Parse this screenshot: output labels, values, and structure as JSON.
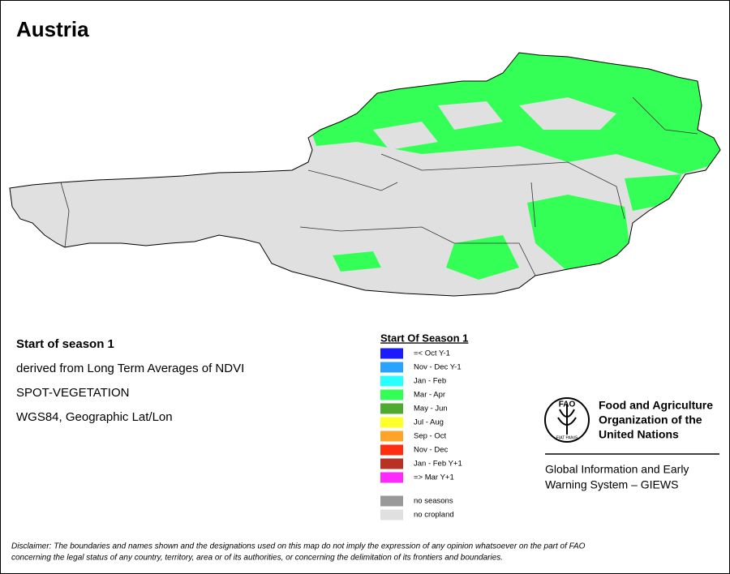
{
  "title": "Austria",
  "description": [
    "Start of season 1",
    "derived from Long Term Averages of NDVI",
    "SPOT-VEGETATION",
    "WGS84, Geographic Lat/Lon"
  ],
  "legend": {
    "title": "Start Of Season 1",
    "items": [
      {
        "label": "=< Oct Y-1",
        "color": "#1a1aff"
      },
      {
        "label": "Nov - Dec Y-1",
        "color": "#29a3ff"
      },
      {
        "label": "Jan - Feb",
        "color": "#29ffff"
      },
      {
        "label": "Mar - Apr",
        "color": "#33ff57"
      },
      {
        "label": "May - Jun",
        "color": "#4daa2e"
      },
      {
        "label": "Jul - Aug",
        "color": "#ffff29"
      },
      {
        "label": "Sep - Oct",
        "color": "#ffa329"
      },
      {
        "label": "Nov - Dec",
        "color": "#ff2e0f"
      },
      {
        "label": "Jan - Feb Y+1",
        "color": "#b83124"
      },
      {
        "label": "=> Mar Y+1",
        "color": "#ff29ff"
      }
    ],
    "extra": [
      {
        "label": "no seasons",
        "color": "#999999"
      },
      {
        "label": "no cropland",
        "color": "#e0e0e0"
      }
    ]
  },
  "logo": {
    "emblem": "FAO",
    "motto": "FIAT PANIS",
    "organization": [
      "Food and Agriculture",
      "Organization of the",
      "United Nations"
    ],
    "system": [
      "Global Information and Early",
      "Warning System – GIEWS"
    ]
  },
  "disclaimer": [
    "Disclaimer: The boundaries and names shown and the designations used on this map do not imply the expression of any opinion whatsoever on the part of FAO",
    "concerning the legal status of any country, territory, area or of its authorities, or concerning the delimitation of its frontiers and boundaries."
  ]
}
